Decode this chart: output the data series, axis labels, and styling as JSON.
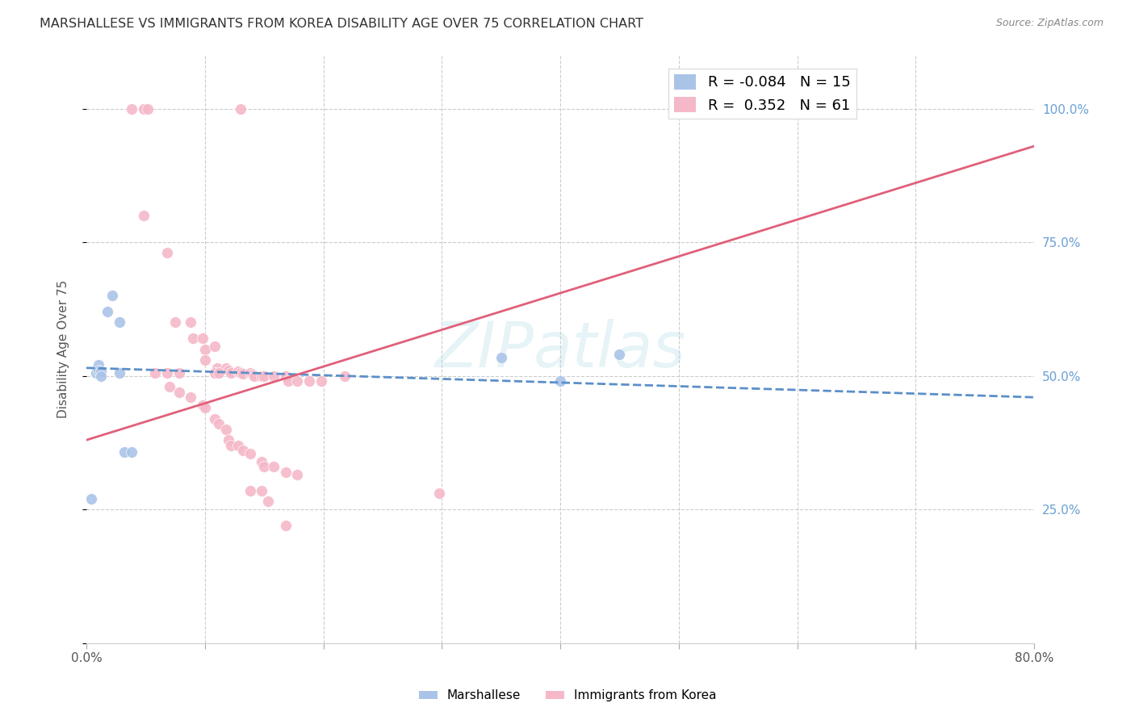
{
  "title": "MARSHALLESE VS IMMIGRANTS FROM KOREA DISABILITY AGE OVER 75 CORRELATION CHART",
  "source": "Source: ZipAtlas.com",
  "ylabel": "Disability Age Over 75",
  "yticks": [
    0.0,
    0.25,
    0.5,
    0.75,
    1.0
  ],
  "ytick_labels": [
    "",
    "25.0%",
    "50.0%",
    "75.0%",
    "100.0%"
  ],
  "xlim": [
    0.0,
    0.8
  ],
  "ylim": [
    0.0,
    1.1
  ],
  "legend_R_blue": "-0.084",
  "legend_N_blue": "15",
  "legend_R_pink": "0.352",
  "legend_N_pink": "61",
  "blue_scatter_color": "#aac4e8",
  "pink_scatter_color": "#f5b8c8",
  "trendline_blue_color": "#5b8fc9",
  "trendline_pink_color": "#e0607a",
  "watermark": "ZIPatlas",
  "blue_trend_x": [
    0.0,
    0.8
  ],
  "blue_trend_y": [
    0.515,
    0.46
  ],
  "pink_trend_x": [
    0.0,
    0.8
  ],
  "pink_trend_y": [
    0.38,
    0.93
  ],
  "marshallese_points": [
    [
      0.008,
      0.505
    ],
    [
      0.01,
      0.52
    ],
    [
      0.01,
      0.51
    ],
    [
      0.012,
      0.508
    ],
    [
      0.012,
      0.5
    ],
    [
      0.018,
      0.62
    ],
    [
      0.022,
      0.65
    ],
    [
      0.028,
      0.6
    ],
    [
      0.028,
      0.505
    ],
    [
      0.032,
      0.358
    ],
    [
      0.038,
      0.358
    ],
    [
      0.004,
      0.27
    ],
    [
      0.35,
      0.535
    ],
    [
      0.4,
      0.49
    ],
    [
      0.45,
      0.54
    ]
  ],
  "korea_points": [
    [
      0.038,
      1.0
    ],
    [
      0.048,
      1.0
    ],
    [
      0.052,
      1.0
    ],
    [
      0.13,
      1.0
    ],
    [
      0.53,
      1.0
    ],
    [
      0.048,
      0.8
    ],
    [
      0.068,
      0.73
    ],
    [
      0.075,
      0.6
    ],
    [
      0.088,
      0.6
    ],
    [
      0.09,
      0.57
    ],
    [
      0.098,
      0.57
    ],
    [
      0.1,
      0.55
    ],
    [
      0.1,
      0.53
    ],
    [
      0.108,
      0.555
    ],
    [
      0.11,
      0.515
    ],
    [
      0.118,
      0.515
    ],
    [
      0.12,
      0.51
    ],
    [
      0.122,
      0.505
    ],
    [
      0.128,
      0.508
    ],
    [
      0.13,
      0.506
    ],
    [
      0.132,
      0.504
    ],
    [
      0.138,
      0.505
    ],
    [
      0.14,
      0.502
    ],
    [
      0.142,
      0.5
    ],
    [
      0.148,
      0.5
    ],
    [
      0.15,
      0.5
    ],
    [
      0.058,
      0.505
    ],
    [
      0.068,
      0.505
    ],
    [
      0.07,
      0.48
    ],
    [
      0.078,
      0.47
    ],
    [
      0.088,
      0.46
    ],
    [
      0.098,
      0.445
    ],
    [
      0.1,
      0.44
    ],
    [
      0.108,
      0.42
    ],
    [
      0.112,
      0.41
    ],
    [
      0.118,
      0.4
    ],
    [
      0.12,
      0.38
    ],
    [
      0.122,
      0.37
    ],
    [
      0.128,
      0.37
    ],
    [
      0.132,
      0.36
    ],
    [
      0.138,
      0.355
    ],
    [
      0.148,
      0.34
    ],
    [
      0.15,
      0.33
    ],
    [
      0.158,
      0.33
    ],
    [
      0.168,
      0.32
    ],
    [
      0.178,
      0.315
    ],
    [
      0.158,
      0.5
    ],
    [
      0.168,
      0.5
    ],
    [
      0.17,
      0.49
    ],
    [
      0.178,
      0.49
    ],
    [
      0.188,
      0.49
    ],
    [
      0.198,
      0.49
    ],
    [
      0.218,
      0.5
    ],
    [
      0.138,
      0.285
    ],
    [
      0.148,
      0.285
    ],
    [
      0.153,
      0.265
    ],
    [
      0.168,
      0.22
    ],
    [
      0.298,
      0.28
    ],
    [
      0.078,
      0.505
    ],
    [
      0.108,
      0.505
    ],
    [
      0.112,
      0.505
    ]
  ]
}
